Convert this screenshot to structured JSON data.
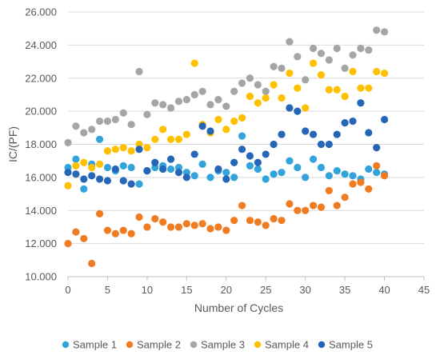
{
  "chart_data": {
    "type": "scatter",
    "title": "",
    "xlabel": "Number of Cycles",
    "ylabel": "IC/(PF)",
    "xlim": [
      0,
      45
    ],
    "ylim": [
      10,
      26
    ],
    "x_ticks": [
      0,
      5,
      10,
      15,
      20,
      25,
      30,
      35,
      40,
      45
    ],
    "y_ticks": [
      10,
      12,
      14,
      16,
      18,
      20,
      22,
      24,
      26
    ],
    "x_tick_labels": [
      "0",
      "5",
      "10",
      "15",
      "20",
      "25",
      "30",
      "35",
      "40",
      "45"
    ],
    "y_tick_labels": [
      "10.000",
      "12.000",
      "14.000",
      "16.000",
      "18.000",
      "20.000",
      "22.000",
      "24.000",
      "26.000"
    ],
    "grid": "horizontal",
    "legend_position": "bottom",
    "series": [
      {
        "name": "Sample 1",
        "color": "#33a3db",
        "points": [
          [
            0,
            16.6
          ],
          [
            1,
            17.1
          ],
          [
            2,
            15.3
          ],
          [
            3,
            16.8
          ],
          [
            4,
            18.3
          ],
          [
            5,
            16.6
          ],
          [
            6,
            16.4
          ],
          [
            7,
            16.7
          ],
          [
            8,
            16.6
          ],
          [
            9,
            15.6
          ],
          [
            10,
            16.4
          ],
          [
            11,
            16.6
          ],
          [
            12,
            16.7
          ],
          [
            13,
            16.5
          ],
          [
            14,
            16.6
          ],
          [
            15,
            16.3
          ],
          [
            16,
            16.1
          ],
          [
            17,
            16.8
          ],
          [
            18,
            16.0
          ],
          [
            19,
            16.4
          ],
          [
            20,
            16.3
          ],
          [
            21,
            16.0
          ],
          [
            22,
            18.5
          ],
          [
            23,
            16.7
          ],
          [
            24,
            16.5
          ],
          [
            25,
            15.9
          ],
          [
            26,
            16.2
          ],
          [
            27,
            16.3
          ],
          [
            28,
            17.0
          ],
          [
            29,
            16.6
          ],
          [
            30,
            16.0
          ],
          [
            31,
            17.1
          ],
          [
            32,
            16.6
          ],
          [
            33,
            16.1
          ],
          [
            34,
            16.4
          ],
          [
            35,
            16.2
          ],
          [
            36,
            16.1
          ],
          [
            37,
            15.9
          ],
          [
            38,
            16.5
          ],
          [
            39,
            16.3
          ],
          [
            40,
            16.2
          ]
        ]
      },
      {
        "name": "Sample 2",
        "color": "#f07b20",
        "points": [
          [
            0,
            12.0
          ],
          [
            1,
            12.7
          ],
          [
            2,
            12.3
          ],
          [
            3,
            10.8
          ],
          [
            4,
            13.8
          ],
          [
            5,
            12.8
          ],
          [
            6,
            12.6
          ],
          [
            7,
            12.8
          ],
          [
            8,
            12.6
          ],
          [
            9,
            13.6
          ],
          [
            10,
            13.0
          ],
          [
            11,
            13.5
          ],
          [
            12,
            13.3
          ],
          [
            13,
            13.0
          ],
          [
            14,
            13.0
          ],
          [
            15,
            13.2
          ],
          [
            16,
            13.1
          ],
          [
            17,
            13.2
          ],
          [
            18,
            12.9
          ],
          [
            19,
            13.0
          ],
          [
            20,
            12.8
          ],
          [
            21,
            13.4
          ],
          [
            22,
            14.3
          ],
          [
            23,
            13.4
          ],
          [
            24,
            13.3
          ],
          [
            25,
            13.1
          ],
          [
            26,
            13.5
          ],
          [
            27,
            13.4
          ],
          [
            28,
            14.4
          ],
          [
            29,
            14.0
          ],
          [
            30,
            14.0
          ],
          [
            31,
            14.3
          ],
          [
            32,
            14.2
          ],
          [
            33,
            15.2
          ],
          [
            34,
            14.3
          ],
          [
            35,
            14.8
          ],
          [
            36,
            15.6
          ],
          [
            37,
            15.7
          ],
          [
            38,
            15.3
          ],
          [
            39,
            16.7
          ],
          [
            40,
            16.1
          ]
        ]
      },
      {
        "name": "Sample 3",
        "color": "#a5a5a5",
        "points": [
          [
            0,
            18.1
          ],
          [
            1,
            19.1
          ],
          [
            2,
            18.7
          ],
          [
            3,
            18.9
          ],
          [
            4,
            19.4
          ],
          [
            5,
            19.4
          ],
          [
            6,
            19.5
          ],
          [
            7,
            19.9
          ],
          [
            8,
            19.2
          ],
          [
            9,
            22.4
          ],
          [
            10,
            19.8
          ],
          [
            11,
            20.5
          ],
          [
            12,
            20.4
          ],
          [
            13,
            20.2
          ],
          [
            14,
            20.6
          ],
          [
            15,
            20.7
          ],
          [
            16,
            21.0
          ],
          [
            17,
            21.2
          ],
          [
            18,
            20.4
          ],
          [
            19,
            20.7
          ],
          [
            20,
            20.3
          ],
          [
            21,
            21.2
          ],
          [
            22,
            21.7
          ],
          [
            23,
            22.0
          ],
          [
            24,
            21.6
          ],
          [
            25,
            21.2
          ],
          [
            26,
            22.7
          ],
          [
            27,
            22.6
          ],
          [
            28,
            24.2
          ],
          [
            29,
            23.3
          ],
          [
            30,
            21.9
          ],
          [
            31,
            23.8
          ],
          [
            32,
            23.5
          ],
          [
            33,
            23.1
          ],
          [
            34,
            23.8
          ],
          [
            35,
            22.6
          ],
          [
            36,
            23.4
          ],
          [
            37,
            23.8
          ],
          [
            38,
            23.7
          ],
          [
            39,
            24.9
          ],
          [
            40,
            24.8
          ]
        ]
      },
      {
        "name": "Sample 4",
        "color": "#ffc000",
        "points": [
          [
            0,
            15.5
          ],
          [
            1,
            16.7
          ],
          [
            2,
            16.9
          ],
          [
            3,
            16.6
          ],
          [
            4,
            16.8
          ],
          [
            5,
            17.6
          ],
          [
            6,
            17.7
          ],
          [
            7,
            17.8
          ],
          [
            8,
            17.6
          ],
          [
            9,
            18.0
          ],
          [
            10,
            17.8
          ],
          [
            11,
            18.3
          ],
          [
            12,
            18.9
          ],
          [
            13,
            18.3
          ],
          [
            14,
            18.3
          ],
          [
            15,
            18.6
          ],
          [
            16,
            22.9
          ],
          [
            17,
            19.2
          ],
          [
            18,
            18.7
          ],
          [
            19,
            19.5
          ],
          [
            20,
            18.9
          ],
          [
            21,
            19.4
          ],
          [
            22,
            19.6
          ],
          [
            23,
            20.9
          ],
          [
            24,
            20.5
          ],
          [
            25,
            20.8
          ],
          [
            26,
            21.6
          ],
          [
            27,
            20.8
          ],
          [
            28,
            22.3
          ],
          [
            29,
            21.4
          ],
          [
            30,
            20.2
          ],
          [
            31,
            22.9
          ],
          [
            32,
            22.2
          ],
          [
            33,
            21.3
          ],
          [
            34,
            21.3
          ],
          [
            35,
            20.9
          ],
          [
            36,
            22.4
          ],
          [
            37,
            21.4
          ],
          [
            38,
            21.4
          ],
          [
            39,
            22.4
          ],
          [
            40,
            22.3
          ]
        ]
      },
      {
        "name": "Sample 5",
        "color": "#2566b8",
        "points": [
          [
            0,
            16.3
          ],
          [
            1,
            16.2
          ],
          [
            2,
            15.9
          ],
          [
            3,
            16.1
          ],
          [
            4,
            15.9
          ],
          [
            5,
            15.8
          ],
          [
            6,
            16.5
          ],
          [
            7,
            15.8
          ],
          [
            8,
            15.6
          ],
          [
            9,
            17.7
          ],
          [
            10,
            16.4
          ],
          [
            11,
            16.9
          ],
          [
            12,
            16.5
          ],
          [
            13,
            17.1
          ],
          [
            14,
            16.3
          ],
          [
            15,
            16.0
          ],
          [
            16,
            17.4
          ],
          [
            17,
            19.1
          ],
          [
            18,
            18.8
          ],
          [
            19,
            16.5
          ],
          [
            20,
            15.9
          ],
          [
            21,
            16.9
          ],
          [
            22,
            17.7
          ],
          [
            23,
            17.3
          ],
          [
            24,
            16.9
          ],
          [
            25,
            17.4
          ],
          [
            26,
            18.0
          ],
          [
            27,
            18.6
          ],
          [
            28,
            20.2
          ],
          [
            29,
            20.0
          ],
          [
            30,
            18.8
          ],
          [
            31,
            18.6
          ],
          [
            32,
            18.0
          ],
          [
            33,
            18.0
          ],
          [
            34,
            18.6
          ],
          [
            35,
            19.3
          ],
          [
            36,
            19.4
          ],
          [
            37,
            20.5
          ],
          [
            38,
            18.7
          ],
          [
            39,
            17.8
          ],
          [
            40,
            19.5
          ]
        ]
      }
    ]
  }
}
